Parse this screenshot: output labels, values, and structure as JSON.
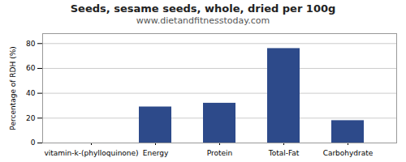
{
  "chart_data": {
    "type": "bar",
    "title": "Seeds, sesame seeds, whole, dried per 100g",
    "subtitle": "www.dietandfitnesstoday.com",
    "categories": [
      "vitamin-k-(phylloquinone)",
      "Energy",
      "Protein",
      "Total-Fat",
      "Carbohydrate"
    ],
    "values": [
      0,
      29,
      32,
      76,
      18
    ],
    "color": "#2d4a8a",
    "ylabel": "Percentage of RDH (%)",
    "ylim": [
      0,
      88
    ],
    "yticks": [
      0,
      20,
      40,
      60,
      80
    ],
    "grid": true
  }
}
